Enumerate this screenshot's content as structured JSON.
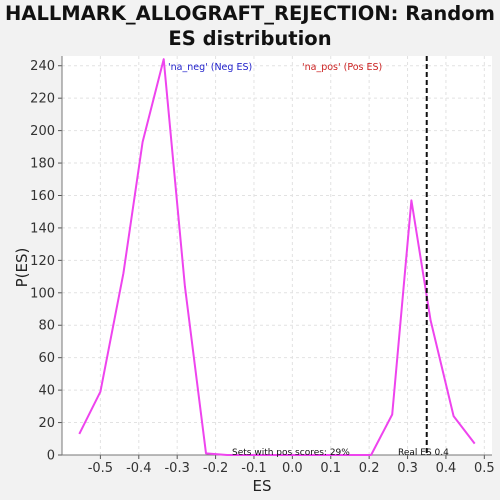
{
  "chart_data": {
    "type": "line",
    "title_line1": "HALLMARK_ALLOGRAFT_REJECTION: Random",
    "title_line2": "ES distribution",
    "xlabel": "ES",
    "ylabel": "P(ES)",
    "xlim": [
      -0.6,
      0.52
    ],
    "ylim": [
      0,
      246
    ],
    "xticks": [
      -0.5,
      -0.4,
      -0.3,
      -0.2,
      -0.1,
      0.0,
      0.1,
      0.2,
      0.3,
      0.4,
      0.5
    ],
    "xtick_labels": [
      "-0.5",
      "-0.4",
      "-0.3",
      "-0.2",
      "-0.1",
      "0.0",
      "0.1",
      "0.2",
      "0.3",
      "0.4",
      "0.5"
    ],
    "yticks": [
      0,
      20,
      40,
      60,
      80,
      100,
      120,
      140,
      160,
      180,
      200,
      220,
      240
    ],
    "ytick_labels": [
      "0",
      "20",
      "40",
      "60",
      "80",
      "100",
      "120",
      "140",
      "160",
      "180",
      "200",
      "220",
      "240"
    ],
    "grid": true,
    "series": [
      {
        "color": "#ee44ee",
        "x": [
          -0.555,
          -0.5,
          -0.44,
          -0.39,
          -0.335,
          -0.28,
          -0.225,
          -0.17,
          -0.115,
          -0.06,
          -0.005,
          0.05,
          0.105,
          0.16,
          0.205,
          0.26,
          0.31,
          0.36,
          0.42,
          0.475
        ],
        "y": [
          13,
          39,
          112,
          193,
          244,
          104,
          1,
          0,
          0,
          0,
          0,
          0,
          0,
          0,
          0,
          25,
          157,
          83,
          24,
          7
        ]
      }
    ],
    "legend": [
      {
        "label": "'na_neg' (Neg ES)",
        "color": "#2222cc"
      },
      {
        "label": "'na_pos' (Pos ES)",
        "color": "#cc2222"
      }
    ],
    "real_es": {
      "x": 0.35,
      "label": "Real ES 0.4"
    },
    "pos_scores_label": "Sets with pos scores: 29%"
  }
}
